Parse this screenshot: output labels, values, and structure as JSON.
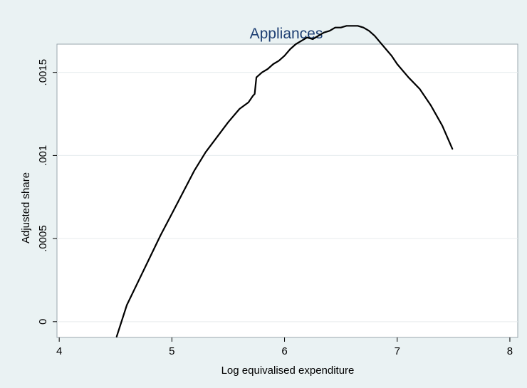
{
  "chart_data": {
    "type": "line",
    "title": "Appliances",
    "xlabel": "Log equivalised expenditure",
    "ylabel": "Adjusted share",
    "xlim": [
      3.98,
      8.07
    ],
    "ylim": [
      -9.5e-05,
      0.00167
    ],
    "x_ticks": [
      4,
      5,
      6,
      7,
      8
    ],
    "x_tick_labels": [
      "4",
      "5",
      "6",
      "7",
      "8"
    ],
    "y_ticks": [
      0,
      0.0005,
      0.001,
      0.0015
    ],
    "y_tick_labels": [
      "0",
      ".0005",
      ".001",
      ".0015"
    ],
    "grid": "horizontal",
    "legend": false,
    "colors": {
      "background": "#eaf2f3",
      "plot_background": "#ffffff",
      "line": "#000000",
      "title": "#1e3f73",
      "grid": "#e6ecee"
    },
    "series": [
      {
        "x": [
          4.51,
          4.6,
          4.7,
          4.8,
          4.9,
          5.0,
          5.1,
          5.2,
          5.3,
          5.4,
          5.5,
          5.6,
          5.68,
          5.72,
          5.735,
          5.75,
          5.8,
          5.85,
          5.9,
          5.95,
          6.0,
          6.05,
          6.1,
          6.15,
          6.2,
          6.25,
          6.3,
          6.35,
          6.4,
          6.45,
          6.5,
          6.55,
          6.6,
          6.65,
          6.7,
          6.75,
          6.8,
          6.85,
          6.9,
          6.95,
          7.0,
          7.1,
          7.2,
          7.3,
          7.4,
          7.49
        ],
        "y": [
          -9e-05,
          0.0001,
          0.00024,
          0.00038,
          0.00052,
          0.00065,
          0.00078,
          0.00091,
          0.00102,
          0.00111,
          0.0012,
          0.00128,
          0.00132,
          0.00136,
          0.00137,
          0.00147,
          0.0015,
          0.00152,
          0.00155,
          0.00157,
          0.0016,
          0.00164,
          0.00167,
          0.00169,
          0.00171,
          0.0017,
          0.00172,
          0.00174,
          0.00175,
          0.00177,
          0.00177,
          0.00178,
          0.00178,
          0.00178,
          0.00177,
          0.00175,
          0.00172,
          0.00168,
          0.00164,
          0.0016,
          0.00155,
          0.00147,
          0.0014,
          0.0013,
          0.00118,
          0.00104
        ]
      }
    ]
  }
}
